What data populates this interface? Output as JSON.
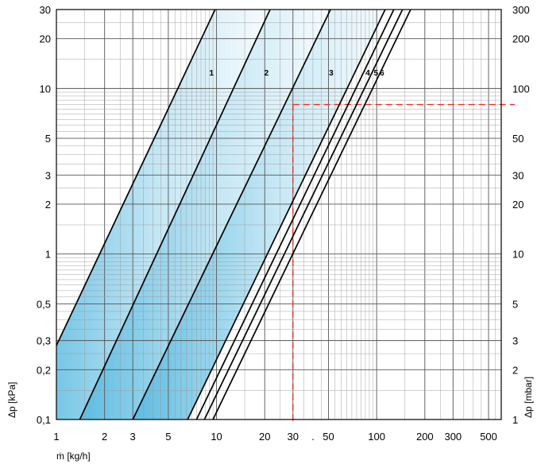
{
  "chart_data": {
    "type": "line",
    "xscale": "log",
    "yscale": "log",
    "xlim": [
      1,
      600
    ],
    "ylim_left": [
      0.1,
      30
    ],
    "ylim_right": [
      1,
      300
    ],
    "xlabel": "ṁ [kg/h]",
    "ylabel_left": "Δp [kPa]",
    "ylabel_right": "Δp [mbar]",
    "x_ticks": [
      "1",
      "2",
      "3",
      "5",
      "10",
      "20",
      "30",
      ".",
      "50",
      "100",
      "200",
      "300",
      "500"
    ],
    "y_ticks_left": [
      "0,1",
      "0,2",
      "0,3",
      "0,5",
      "1",
      "2",
      "3",
      "5",
      "10",
      "20",
      "30"
    ],
    "y_ticks_right": [
      "1",
      "2",
      "3",
      "5",
      "10",
      "20",
      "30",
      "50",
      "100",
      "200",
      "300"
    ],
    "grid": true,
    "series": [
      {
        "name": "1",
        "points": [
          [
            1,
            0.28
          ],
          [
            9.8,
            30
          ]
        ]
      },
      {
        "name": "2",
        "points": [
          [
            1.4,
            0.1
          ],
          [
            21.6,
            30
          ]
        ]
      },
      {
        "name": "3",
        "points": [
          [
            3,
            0.1
          ],
          [
            51.5,
            30
          ]
        ]
      },
      {
        "name": "4",
        "points": [
          [
            6.6,
            0.1
          ],
          [
            113,
            30
          ]
        ]
      },
      {
        "name": "5",
        "points": [
          [
            7.5,
            0.1
          ],
          [
            128,
            30
          ]
        ]
      },
      {
        "name": "6",
        "points": [
          [
            8.4,
            0.1
          ],
          [
            145,
            30
          ]
        ]
      },
      {
        "name": "",
        "points": [
          [
            9.5,
            0.1
          ],
          [
            163,
            30
          ]
        ]
      }
    ],
    "curve_labels": [
      {
        "text": "1",
        "x": 9.3,
        "y": 12
      },
      {
        "text": "2",
        "x": 20.5,
        "y": 12
      },
      {
        "text": "3",
        "x": 52,
        "y": 12
      },
      {
        "text": "4",
        "x": 88,
        "y": 12
      },
      {
        "text": "5",
        "x": 99,
        "y": 12
      },
      {
        "text": "6",
        "x": 108,
        "y": 12
      }
    ],
    "reference": {
      "x": 30,
      "y": 8,
      "color": "#e8322a"
    },
    "shading_color": "#2fa8d8",
    "grid_color": "#9a9a9a",
    "line_color": "#000000"
  }
}
